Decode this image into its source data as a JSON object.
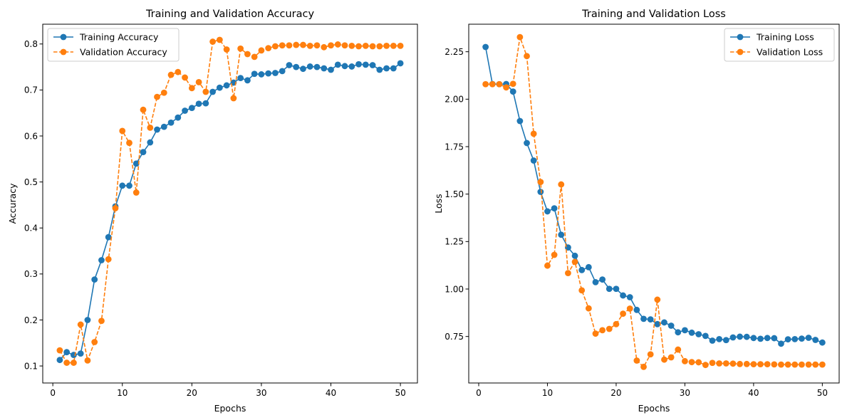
{
  "chart_data": [
    {
      "type": "line",
      "title": "Training and Validation Accuracy",
      "xlabel": "Epochs",
      "ylabel": "Accuracy",
      "xlim": [
        -1.45,
        52.45
      ],
      "ylim": [
        0.063,
        0.843
      ],
      "xticks": [
        0,
        10,
        20,
        30,
        40,
        50
      ],
      "xtick_labels": [
        "0",
        "10",
        "20",
        "30",
        "40",
        "50"
      ],
      "yticks": [
        0.1,
        0.2,
        0.3,
        0.4,
        0.5,
        0.6,
        0.7,
        0.8
      ],
      "ytick_labels": [
        "0.1",
        "0.2",
        "0.3",
        "0.4",
        "0.5",
        "0.6",
        "0.7",
        "0.8"
      ],
      "grid": false,
      "legend_position": "top-left",
      "x": [
        1,
        2,
        3,
        4,
        5,
        6,
        7,
        8,
        9,
        10,
        11,
        12,
        13,
        14,
        15,
        16,
        17,
        18,
        19,
        20,
        21,
        22,
        23,
        24,
        25,
        26,
        27,
        28,
        29,
        30,
        31,
        32,
        33,
        34,
        35,
        36,
        37,
        38,
        39,
        40,
        41,
        42,
        43,
        44,
        45,
        46,
        47,
        48,
        49,
        50
      ],
      "series": [
        {
          "name": "Training Accuracy",
          "color": "#1f77b4",
          "linestyle": "solid",
          "values": [
            0.113,
            0.13,
            0.124,
            0.127,
            0.2,
            0.288,
            0.33,
            0.38,
            0.447,
            0.492,
            0.492,
            0.54,
            0.565,
            0.586,
            0.614,
            0.62,
            0.629,
            0.64,
            0.655,
            0.661,
            0.67,
            0.671,
            0.696,
            0.705,
            0.71,
            0.716,
            0.726,
            0.721,
            0.735,
            0.734,
            0.736,
            0.737,
            0.741,
            0.754,
            0.75,
            0.746,
            0.751,
            0.75,
            0.747,
            0.744,
            0.755,
            0.752,
            0.751,
            0.756,
            0.755,
            0.754,
            0.744,
            0.747,
            0.747,
            0.758
          ]
        },
        {
          "name": "Validation Accuracy",
          "color": "#ff7f0e",
          "linestyle": "dashed",
          "values": [
            0.134,
            0.107,
            0.107,
            0.19,
            0.112,
            0.152,
            0.198,
            0.332,
            0.443,
            0.611,
            0.585,
            0.477,
            0.657,
            0.618,
            0.685,
            0.694,
            0.733,
            0.739,
            0.727,
            0.704,
            0.717,
            0.696,
            0.805,
            0.809,
            0.788,
            0.682,
            0.79,
            0.778,
            0.772,
            0.786,
            0.791,
            0.795,
            0.797,
            0.797,
            0.798,
            0.798,
            0.796,
            0.797,
            0.793,
            0.797,
            0.799,
            0.797,
            0.796,
            0.795,
            0.796,
            0.795,
            0.795,
            0.796,
            0.796,
            0.796
          ]
        }
      ]
    },
    {
      "type": "line",
      "title": "Training and Validation Loss",
      "xlabel": "Epochs",
      "ylabel": "Loss",
      "xlim": [
        -1.45,
        52.45
      ],
      "ylim": [
        0.505,
        2.395
      ],
      "xticks": [
        0,
        10,
        20,
        30,
        40,
        50
      ],
      "xtick_labels": [
        "0",
        "10",
        "20",
        "30",
        "40",
        "50"
      ],
      "yticks": [
        0.75,
        1.0,
        1.25,
        1.5,
        1.75,
        2.0,
        2.25
      ],
      "ytick_labels": [
        "0.75",
        "1.00",
        "1.25",
        "1.50",
        "1.75",
        "2.00",
        "2.25"
      ],
      "grid": false,
      "legend_position": "top-right",
      "x": [
        1,
        2,
        3,
        4,
        5,
        6,
        7,
        8,
        9,
        10,
        11,
        12,
        13,
        14,
        15,
        16,
        17,
        18,
        19,
        20,
        21,
        22,
        23,
        24,
        25,
        26,
        27,
        28,
        29,
        30,
        31,
        32,
        33,
        34,
        35,
        36,
        37,
        38,
        39,
        40,
        41,
        42,
        43,
        44,
        45,
        46,
        47,
        48,
        49,
        50
      ],
      "series": [
        {
          "name": "Training Loss",
          "color": "#1f77b4",
          "linestyle": "solid",
          "values": [
            2.275,
            2.08,
            2.079,
            2.08,
            2.04,
            1.885,
            1.769,
            1.677,
            1.512,
            1.409,
            1.425,
            1.286,
            1.219,
            1.175,
            1.1,
            1.115,
            1.036,
            1.05,
            1.001,
            1.001,
            0.966,
            0.957,
            0.89,
            0.843,
            0.84,
            0.815,
            0.824,
            0.807,
            0.772,
            0.783,
            0.77,
            0.762,
            0.753,
            0.728,
            0.736,
            0.731,
            0.745,
            0.749,
            0.748,
            0.742,
            0.738,
            0.742,
            0.741,
            0.712,
            0.735,
            0.736,
            0.739,
            0.743,
            0.732,
            0.718
          ]
        },
        {
          "name": "Validation Loss",
          "color": "#ff7f0e",
          "linestyle": "dashed",
          "values": [
            2.079,
            2.079,
            2.079,
            2.062,
            2.081,
            2.327,
            2.227,
            1.818,
            1.564,
            1.123,
            1.18,
            1.551,
            1.084,
            1.143,
            0.993,
            0.898,
            0.765,
            0.783,
            0.79,
            0.815,
            0.87,
            0.897,
            0.623,
            0.59,
            0.656,
            0.944,
            0.628,
            0.64,
            0.681,
            0.62,
            0.615,
            0.614,
            0.6,
            0.611,
            0.608,
            0.608,
            0.607,
            0.605,
            0.605,
            0.604,
            0.604,
            0.604,
            0.603,
            0.602,
            0.602,
            0.602,
            0.602,
            0.602,
            0.602,
            0.602
          ]
        }
      ]
    }
  ]
}
